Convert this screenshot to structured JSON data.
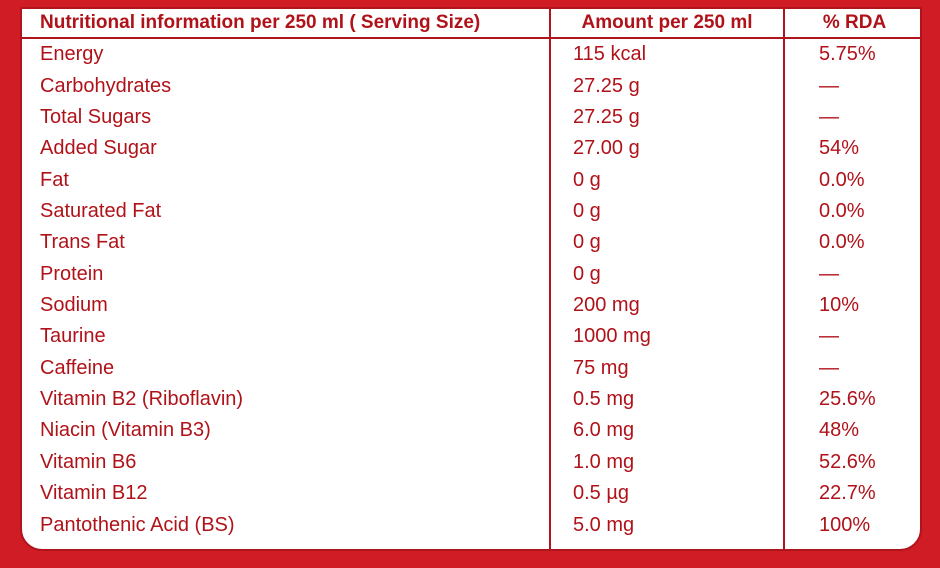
{
  "table": {
    "headers": {
      "name": "Nutritional information per 250 ml ( Serving Size)",
      "amount": "Amount per 250 ml",
      "rda": "% RDA"
    },
    "rows": [
      {
        "name": "Energy",
        "amount": "115 kcal",
        "rda": "5.75%"
      },
      {
        "name": "Carbohydrates",
        "amount": "27.25 g",
        "rda": "—"
      },
      {
        "name": "Total Sugars",
        "amount": "27.25 g",
        "rda": "—"
      },
      {
        "name": "Added Sugar",
        "amount": "27.00 g",
        "rda": "54%"
      },
      {
        "name": "Fat",
        "amount": "0 g",
        "rda": "0.0%"
      },
      {
        "name": "Saturated Fat",
        "amount": "0 g",
        "rda": "0.0%"
      },
      {
        "name": "Trans Fat",
        "amount": "0 g",
        "rda": "0.0%"
      },
      {
        "name": "Protein",
        "amount": "0 g",
        "rda": "—"
      },
      {
        "name": "Sodium",
        "amount": "200 mg",
        "rda": "10%"
      },
      {
        "name": "Taurine",
        "amount": "1000 mg",
        "rda": "—"
      },
      {
        "name": "Caffeine",
        "amount": "75 mg",
        "rda": "—"
      },
      {
        "name": "Vitamin B2 (Riboflavin)",
        "amount": "0.5 mg",
        "rda": "25.6%"
      },
      {
        "name": "Niacin (Vitamin B3)",
        "amount": "6.0 mg",
        "rda": "48%"
      },
      {
        "name": "Vitamin B6",
        "amount": "1.0 mg",
        "rda": "52.6%"
      },
      {
        "name": "Vitamin B12",
        "amount": "0.5 µg",
        "rda": "22.7%"
      },
      {
        "name": "Pantothenic Acid (BS)",
        "amount": "5.0 mg",
        "rda": "100%"
      }
    ]
  },
  "colors": {
    "text": "#b01219",
    "border": "#b0141c",
    "background": "#d01c24"
  }
}
